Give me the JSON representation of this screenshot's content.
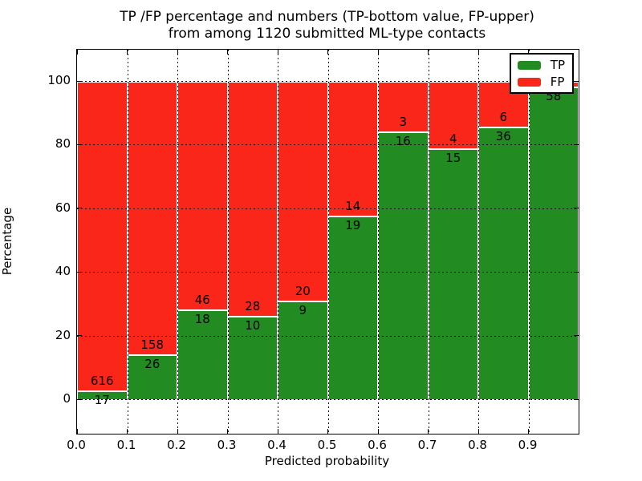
{
  "figure": {
    "title_line1": "TP /FP percentage and numbers (TP-bottom value, FP-upper)",
    "title_line2": "from among 1120 submitted ML-type contacts",
    "background_color": "#ffffff"
  },
  "axes": {
    "xlabel": "Predicted probability",
    "ylabel": "Percentage",
    "x_tick_labels": [
      "0.0",
      "0.1",
      "0.2",
      "0.3",
      "0.4",
      "0.5",
      "0.6",
      "0.7",
      "0.8",
      "0.9"
    ],
    "x_tick_values": [
      0.0,
      0.1,
      0.2,
      0.3,
      0.4,
      0.5,
      0.6,
      0.7,
      0.8,
      0.9
    ],
    "y_tick_labels": [
      "0",
      "20",
      "40",
      "60",
      "80",
      "100"
    ],
    "y_tick_values": [
      0,
      20,
      40,
      60,
      80,
      100
    ],
    "xlim": [
      0.0,
      1.0
    ],
    "ylim": [
      -10,
      110
    ],
    "grid_style": "dotted",
    "frame_color": "#000000"
  },
  "legend": {
    "position": "upper-right",
    "items": [
      {
        "label": "TP",
        "color": "#228B22"
      },
      {
        "label": "FP",
        "color": "#FA2619"
      }
    ]
  },
  "chart_data": {
    "type": "bar",
    "stacked": true,
    "normalized_each_bar_to": 100,
    "total_submitted_contacts": 1120,
    "bin_starts": [
      0.0,
      0.1,
      0.2,
      0.3,
      0.4,
      0.5,
      0.6,
      0.7,
      0.8,
      0.9
    ],
    "bin_width": 0.1,
    "series": [
      {
        "name": "TP",
        "color": "#228B22",
        "counts": [
          17,
          26,
          18,
          10,
          9,
          19,
          16,
          15,
          36,
          58
        ]
      },
      {
        "name": "FP",
        "color": "#FA2619",
        "counts": [
          616,
          158,
          46,
          28,
          20,
          14,
          3,
          4,
          6,
          1
        ]
      }
    ],
    "tp_percent_of_bar": [
      2.7,
      14.1,
      28.1,
      26.3,
      31.0,
      57.6,
      84.2,
      78.9,
      85.7,
      98.3
    ],
    "visible_tp_labels": [
      "17",
      "26",
      "18",
      "10",
      "9",
      "19",
      "16",
      "15",
      "36",
      "58"
    ],
    "visible_fp_labels": [
      "616",
      "158",
      "46",
      "28",
      "20",
      "14",
      "3",
      "4",
      "6",
      ""
    ],
    "bar_edge_color": "#ffffff"
  }
}
